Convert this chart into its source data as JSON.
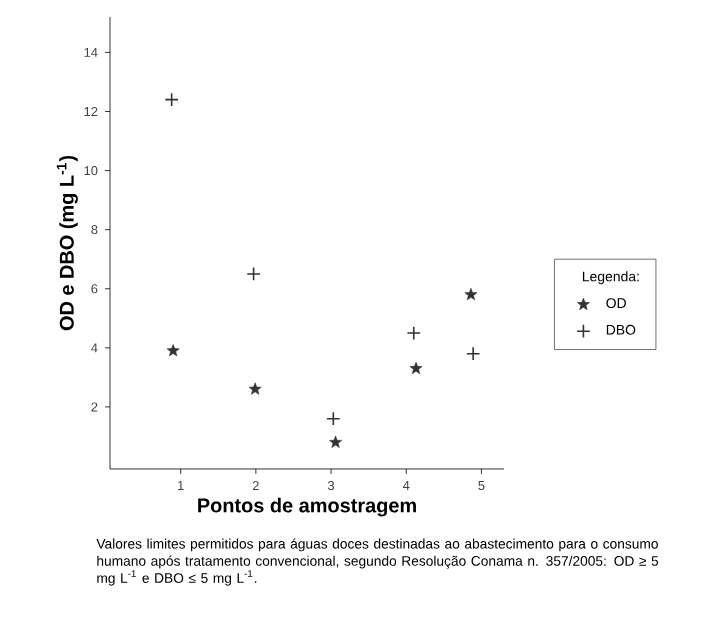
{
  "chart_data": {
    "type": "scatter",
    "xlabel": "Pontos de amostragem",
    "ylabel": "OD e DBO (mg L$^{-1}$)",
    "legend_title": "Legenda:",
    "legend": "right",
    "grid": false,
    "xlim": [
      0.06,
      5.3
    ],
    "ylim": [
      -0.1,
      15.2
    ],
    "xticks": [
      1,
      2,
      3,
      4,
      5
    ],
    "yticks": [
      2,
      4,
      6,
      8,
      10,
      12,
      14
    ],
    "annotations": [
      "Valores limites permitidos para águas doces destinadas ao abastecimento para o consumo humano após tratamento convencional, segundo Resolução Conama n. 357/2005: OD ≥ 5 mg L$^{-1}$  e  DBO ≤ 5 mg L$^{-1}$."
    ],
    "series": [
      {
        "name": "OD",
        "color": "#333333",
        "marker": "star",
        "x": [
          0.9,
          1.99,
          3.06,
          4.13,
          4.86
        ],
        "values": [
          3.9,
          2.6,
          0.8,
          3.3,
          5.8
        ]
      },
      {
        "name": "DBO",
        "color": "#333333",
        "marker": "cross",
        "x": [
          0.88,
          1.97,
          3.03,
          4.1,
          4.89
        ],
        "values": [
          12.4,
          6.5,
          1.6,
          4.5,
          3.8
        ]
      }
    ]
  }
}
